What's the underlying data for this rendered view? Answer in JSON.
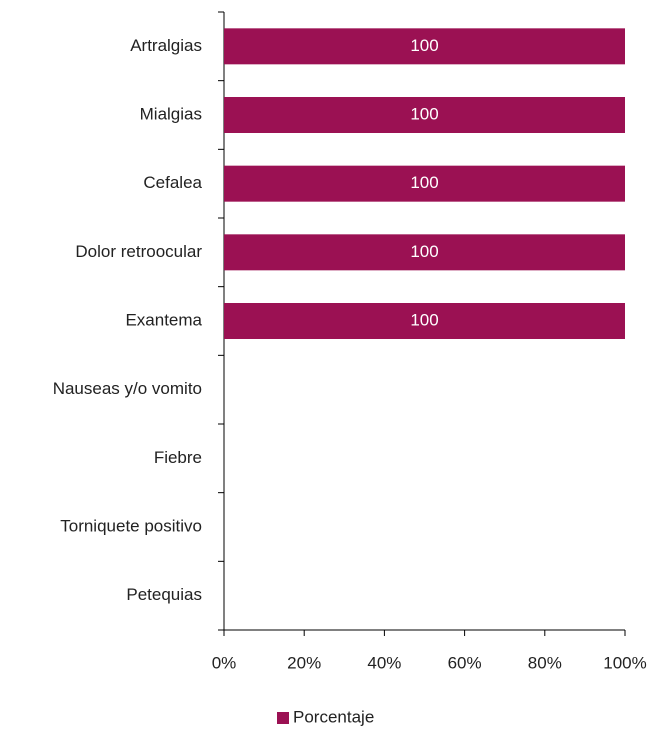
{
  "chart_data": {
    "type": "barh",
    "categories": [
      "Artralgias",
      "Mialgias",
      "Cefalea",
      "Dolor retroocular",
      "Exantema",
      "Nauseas y/o vomito",
      "Fiebre",
      "Torniquete positivo",
      "Petequias"
    ],
    "series": [
      {
        "name": "Porcentaje",
        "color": "#9b1153",
        "values": [
          100,
          100,
          100,
          100,
          100,
          0,
          0,
          0,
          0
        ]
      }
    ],
    "value_labels": [
      "100",
      "100",
      "100",
      "100",
      "100",
      null,
      null,
      null,
      null
    ],
    "xlim": [
      0,
      100
    ],
    "xticks": [
      {
        "value": 0,
        "label": "0%"
      },
      {
        "value": 20,
        "label": "20%"
      },
      {
        "value": 40,
        "label": "40%"
      },
      {
        "value": 60,
        "label": "60%"
      },
      {
        "value": 80,
        "label": "80%"
      },
      {
        "value": 100,
        "label": "100%"
      }
    ],
    "legend": "bottom"
  }
}
